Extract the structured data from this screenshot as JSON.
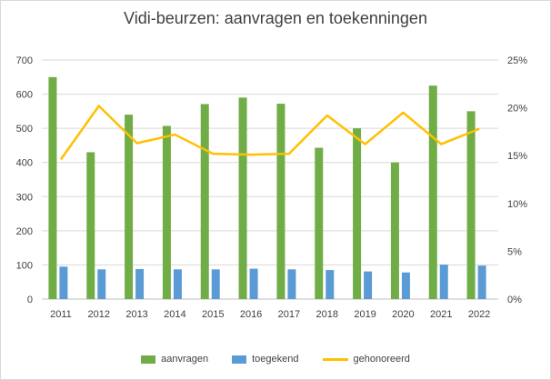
{
  "chart_data": {
    "type": "bar+line",
    "title": "Vidi-beurzen: aanvragen en toekenningen",
    "categories": [
      "2011",
      "2012",
      "2013",
      "2014",
      "2015",
      "2016",
      "2017",
      "2018",
      "2019",
      "2020",
      "2021",
      "2022"
    ],
    "series": [
      {
        "name": "aanvragen",
        "kind": "bar",
        "axis": "left",
        "color": "#70ad47",
        "values": [
          650,
          430,
          540,
          507,
          571,
          590,
          572,
          443,
          500,
          400,
          625,
          550
        ]
      },
      {
        "name": "toegekend",
        "kind": "bar",
        "axis": "left",
        "color": "#5b9bd5",
        "values": [
          95,
          87,
          88,
          87,
          87,
          89,
          87,
          85,
          81,
          78,
          101,
          98
        ]
      },
      {
        "name": "gehonoreerd",
        "kind": "line",
        "axis": "right",
        "color": "#ffc000",
        "values": [
          14.6,
          20.2,
          16.3,
          17.2,
          15.2,
          15.1,
          15.2,
          19.2,
          16.2,
          19.5,
          16.2,
          17.8
        ]
      }
    ],
    "y_left": {
      "min": 0,
      "max": 700,
      "ticks": [
        "0",
        "100",
        "200",
        "300",
        "400",
        "500",
        "600",
        "700"
      ]
    },
    "y_right": {
      "min": 0,
      "max": 25,
      "ticks": [
        "0%",
        "5%",
        "10%",
        "15%",
        "20%",
        "25%"
      ]
    },
    "grid": true,
    "legend_position": "bottom"
  }
}
